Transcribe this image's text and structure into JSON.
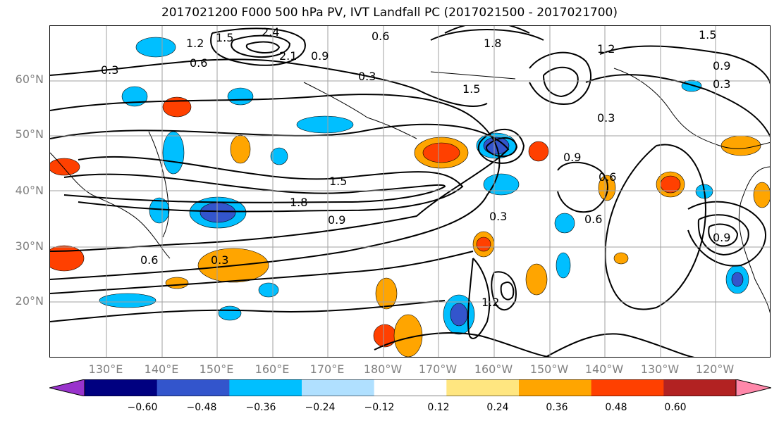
{
  "title": "2017021200 F000 500 hPa PV, IVT Landfall PC (2017021500 - 2017021700)",
  "lat_labels": [
    "60°N",
    "50°N",
    "40°N",
    "30°N",
    "20°N"
  ],
  "lon_labels": [
    "130°E",
    "140°E",
    "150°E",
    "160°E",
    "170°E",
    "180°W",
    "170°W",
    "160°W",
    "150°W",
    "140°W",
    "130°W",
    "120°W"
  ],
  "colorbar": {
    "ticks": [
      "−0.60",
      "−0.48",
      "−0.36",
      "−0.24",
      "−0.12",
      "0.12",
      "0.24",
      "0.36",
      "0.48",
      "0.60"
    ],
    "colors": [
      "#9933cc",
      "#000080",
      "#3355cc",
      "#00bfff",
      "#b0e0ff",
      "#ffffff",
      "#ffe680",
      "#ffa500",
      "#ff4000",
      "#b22222",
      "#ff88aa"
    ]
  },
  "contour_labels": [
    "0.3",
    "0.6",
    "0.9",
    "1.2",
    "1.5",
    "1.8",
    "2.1",
    "2.4"
  ],
  "palette": {
    "neg_strong": "#3355cc",
    "neg_mid": "#00bfff",
    "pos_mid": "#ffa500",
    "pos_strong": "#ff4000",
    "contour": "#000000",
    "grid": "#a0a0a0",
    "coast": "#000000"
  }
}
